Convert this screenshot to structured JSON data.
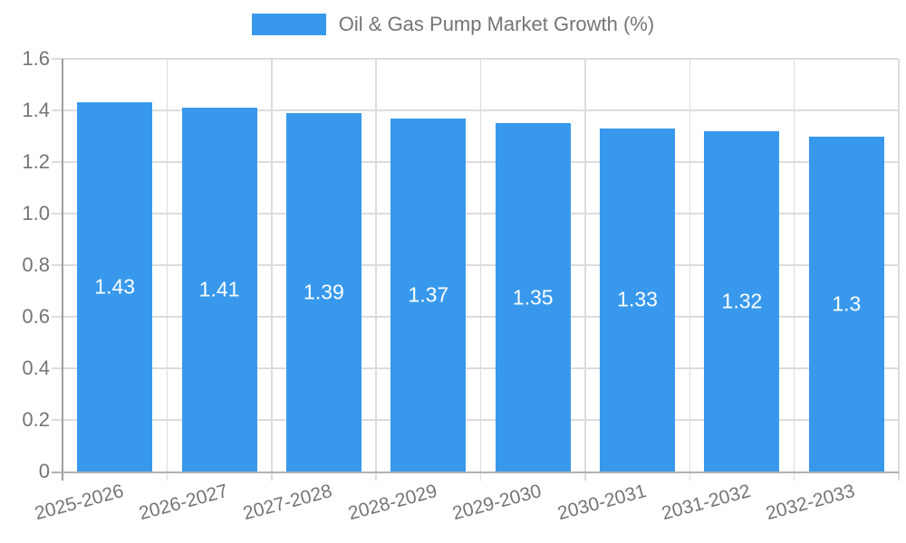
{
  "chart_data": {
    "type": "bar",
    "title": "Oil & Gas Pump Market Growth (%)",
    "categories": [
      "2025-2026",
      "2026-2027",
      "2027-2028",
      "2028-2029",
      "2029-2030",
      "2030-2031",
      "2031-2032",
      "2032-2033"
    ],
    "values": [
      1.43,
      1.41,
      1.39,
      1.37,
      1.35,
      1.33,
      1.32,
      1.3
    ],
    "value_labels": [
      "1.43",
      "1.41",
      "1.39",
      "1.37",
      "1.35",
      "1.33",
      "1.32",
      "1.3"
    ],
    "xlabel": "",
    "ylabel": "",
    "ylim": [
      0,
      1.6
    ],
    "ytick_labels": [
      "0",
      "0.2",
      "0.4",
      "0.6",
      "0.8",
      "1.0",
      "1.2",
      "1.4",
      "1.6"
    ],
    "grid": true,
    "legend_position": "top-center"
  },
  "colors": {
    "bar": "#3899EC",
    "bar_label": "#ffffff",
    "gridline": "#dcdcdc",
    "axis_line": "#9e9e9e",
    "baseline": "#b1b1b1",
    "axis_text": "#757575",
    "background": "#ffffff"
  }
}
